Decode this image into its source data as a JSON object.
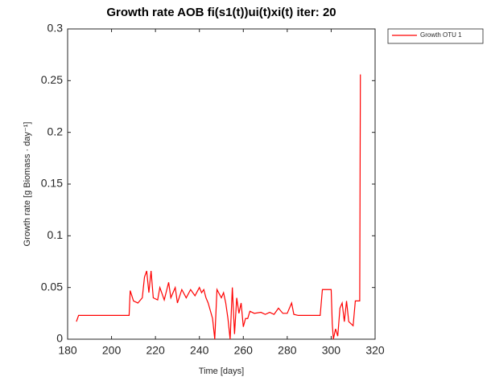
{
  "chart_data": {
    "type": "line",
    "title": "Growth rate AOB fi(s1(t))ui(t)xi(t) iter: 20",
    "x_label": "Time [days]",
    "y_label": "Growth rate [g Biomass · day⁻¹]",
    "x": [
      184,
      185,
      208,
      208.5,
      210,
      212,
      214,
      215,
      216,
      217,
      218,
      219,
      221,
      222,
      224,
      226,
      227,
      229,
      230,
      232,
      234,
      236,
      238,
      240,
      241,
      242,
      243,
      244,
      246,
      247,
      248,
      250,
      251,
      252,
      253,
      254,
      255,
      256,
      257,
      258,
      259,
      260,
      261,
      262,
      263,
      265,
      268,
      270,
      272,
      274,
      276,
      278,
      280,
      281,
      282,
      283,
      285,
      295,
      296,
      300,
      300.5,
      301,
      302,
      303,
      304,
      305,
      306,
      307,
      308,
      309,
      310,
      311,
      312,
      313,
      313.3
    ],
    "series": [
      {
        "name": "Growth OTU 1",
        "color": "#ff0000",
        "values": [
          0.017,
          0.023,
          0.023,
          0.047,
          0.037,
          0.035,
          0.04,
          0.06,
          0.066,
          0.045,
          0.066,
          0.04,
          0.038,
          0.05,
          0.038,
          0.055,
          0.04,
          0.05,
          0.035,
          0.048,
          0.04,
          0.048,
          0.042,
          0.05,
          0.045,
          0.048,
          0.04,
          0.035,
          0.02,
          0.0,
          0.048,
          0.04,
          0.045,
          0.035,
          0.02,
          0.0,
          0.05,
          0.005,
          0.04,
          0.025,
          0.035,
          0.012,
          0.02,
          0.02,
          0.027,
          0.025,
          0.026,
          0.024,
          0.026,
          0.024,
          0.03,
          0.025,
          0.025,
          0.03,
          0.035,
          0.024,
          0.023,
          0.023,
          0.048,
          0.048,
          0.015,
          0.0,
          0.01,
          0.003,
          0.03,
          0.035,
          0.017,
          0.037,
          0.017,
          0.015,
          0.013,
          0.037,
          0.037,
          0.037,
          0.256
        ]
      }
    ],
    "xlim": [
      180,
      320
    ],
    "xticks": [
      180,
      200,
      220,
      240,
      260,
      280,
      300,
      320
    ],
    "ylim": [
      0,
      0.3
    ],
    "yticks": [
      0,
      0.05,
      0.1,
      0.15,
      0.2,
      0.25,
      0.3
    ],
    "legend": "outside-right-top"
  }
}
